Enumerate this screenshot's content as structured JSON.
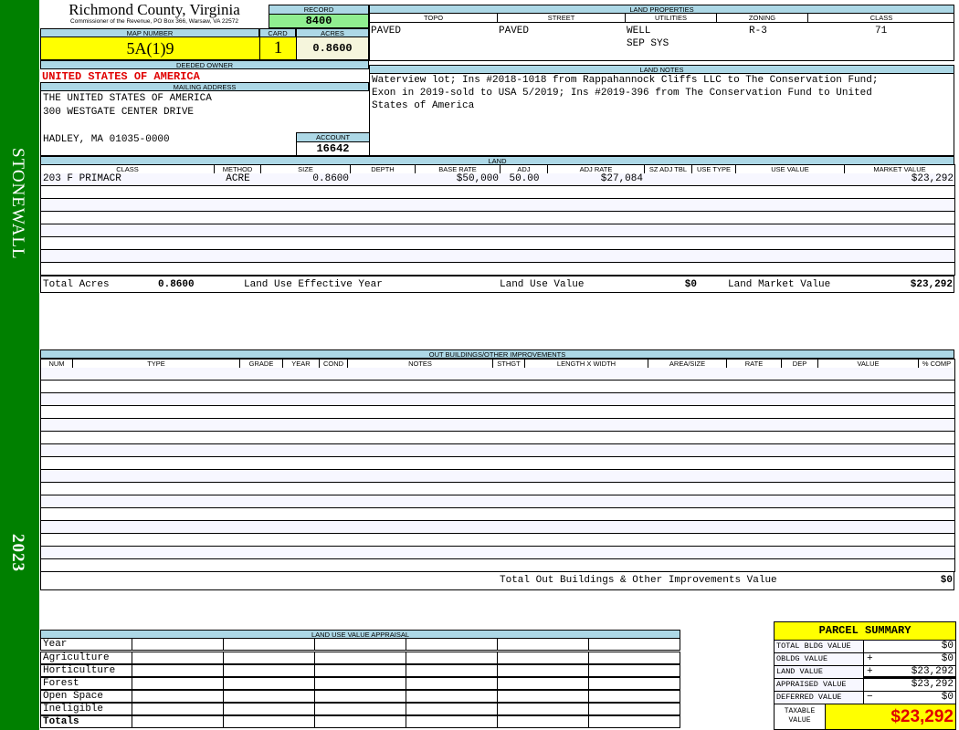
{
  "sidebar": {
    "district": "STONEWALL",
    "year": "2023",
    "color": "#008000"
  },
  "header": {
    "title": "Richmond County, Virginia",
    "subtitle": "Commissioner of the Revenue, PO Box 366, Warsaw, VA 22572",
    "record_label": "RECORD",
    "record": "8400",
    "map_label": "MAP NUMBER",
    "map_number": "5A(1)9",
    "card_label": "CARD",
    "card": "1",
    "acres_label": "ACRES",
    "acres": "0.8600"
  },
  "owner": {
    "label": "DEEDED OWNER",
    "name": "UNITED STATES OF AMERICA",
    "mailing_label": "MAILING ADDRESS",
    "address": [
      "THE UNITED STATES OF AMERICA",
      "300 WESTGATE CENTER DRIVE",
      "",
      "HADLEY, MA 01035-0000"
    ],
    "account_label": "ACCOUNT",
    "account": "16642"
  },
  "land_properties": {
    "label": "LAND PROPERTIES",
    "headers": [
      "TOPO",
      "STREET",
      "UTILITIES",
      "ZONING",
      "CLASS"
    ],
    "values": [
      "PAVED",
      "PAVED",
      "WELL",
      "R-3",
      "71"
    ],
    "utilities_extra": "SEP SYS"
  },
  "land_notes": {
    "label": "LAND NOTES",
    "text": "Waterview lot; Ins #2018-1018 from Rappahannock Cliffs LLC to The Conservation Fund; Exon in 2019-sold to USA 5/2019; Ins #2019-396 from The Conservation Fund to United States of America"
  },
  "land": {
    "label": "LAND",
    "headers": [
      "CLASS",
      "METHOD",
      "SIZE",
      "DEPTH",
      "BASE RATE",
      "ADJ",
      "ADJ RATE",
      "SZ ADJ TBL",
      "USE TYPE",
      "USE VALUE",
      "MARKET VALUE"
    ],
    "rows": [
      [
        "203 F PRIMACR",
        "ACRE",
        "0.8600",
        "",
        "$50,000",
        "50.00",
        "$27,084",
        "",
        "",
        "",
        "$23,292"
      ]
    ],
    "totals": {
      "acres_label": "Total Acres",
      "acres": "0.8600",
      "eff_year_label": "Land Use Effective Year",
      "use_value_label": "Land Use Value",
      "use_value": "$0",
      "market_label": "Land Market Value",
      "market": "$23,292"
    }
  },
  "outbuildings": {
    "label": "OUT BUILDINGS/OTHER IMPROVEMENTS",
    "headers": [
      "NUM",
      "TYPE",
      "GRADE",
      "YEAR",
      "COND",
      "NOTES",
      "STHGT",
      "LENGTH X WIDTH",
      "AREA/SIZE",
      "RATE",
      "DEP",
      "VALUE",
      "% COMP"
    ],
    "total_label": "Total Out Buildings & Other Improvements Value",
    "total": "$0"
  },
  "land_use": {
    "label": "LAND USE VALUE APPRAISAL",
    "year_label": "Year",
    "rows": [
      "Agriculture",
      "Horticulture",
      "Forest",
      "Open Space",
      "Ineligible",
      "Totals"
    ]
  },
  "summary": {
    "title": "PARCEL SUMMARY",
    "rows": [
      {
        "label": "TOTAL BLDG VALUE",
        "op": "",
        "value": "$0"
      },
      {
        "label": "OBLDG VALUE",
        "op": "+",
        "value": "$0"
      },
      {
        "label": "LAND VALUE",
        "op": "+",
        "value": "$23,292"
      },
      {
        "label": "APPRAISED VALUE",
        "op": "",
        "value": "$23,292"
      },
      {
        "label": "DEFERRED VALUE",
        "op": "−",
        "value": "$0"
      }
    ],
    "taxable_label": "TAXABLE VALUE",
    "taxable": "$23,292"
  }
}
